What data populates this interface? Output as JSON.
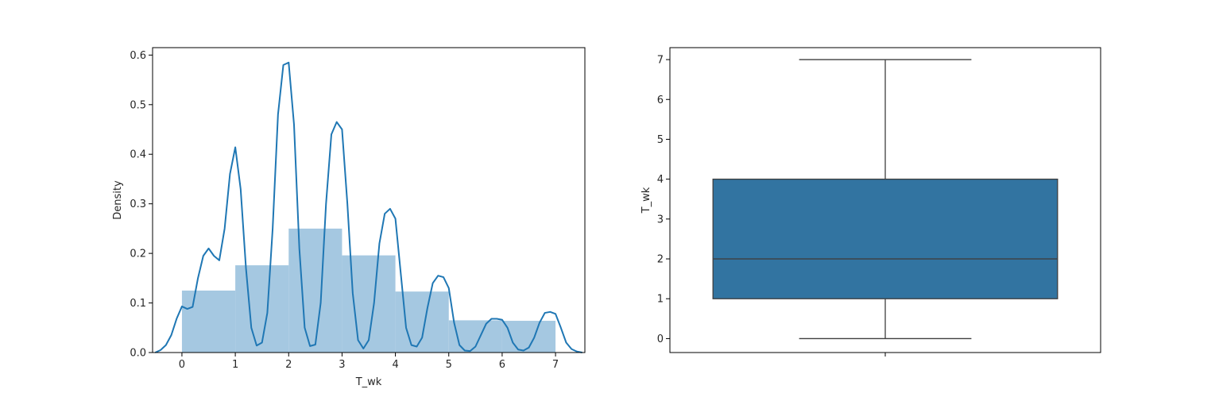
{
  "chart_data": [
    {
      "type": "bar",
      "subtype": "histogram-with-kde",
      "xlabel": "T_wk",
      "ylabel": "Density",
      "xlim": [
        -0.55,
        7.55
      ],
      "ylim": [
        0,
        0.615
      ],
      "xticks": [
        0,
        1,
        2,
        3,
        4,
        5,
        6,
        7
      ],
      "yticks": [
        0.0,
        0.1,
        0.2,
        0.3,
        0.4,
        0.5,
        0.6
      ],
      "ytick_labels": [
        "0.0",
        "0.1",
        "0.2",
        "0.3",
        "0.4",
        "0.5",
        "0.6"
      ],
      "bins": [
        {
          "x0": 0,
          "x1": 1,
          "value": 0.125
        },
        {
          "x0": 1,
          "x1": 2,
          "value": 0.176
        },
        {
          "x0": 2,
          "x1": 3,
          "value": 0.25
        },
        {
          "x0": 3,
          "x1": 4,
          "value": 0.196
        },
        {
          "x0": 4,
          "x1": 5,
          "value": 0.123
        },
        {
          "x0": 5,
          "x1": 6,
          "value": 0.065
        },
        {
          "x0": 6,
          "x1": 7,
          "value": 0.064
        }
      ],
      "kde": {
        "x": [
          -0.5,
          -0.4,
          -0.3,
          -0.2,
          -0.1,
          0.0,
          0.1,
          0.2,
          0.3,
          0.4,
          0.5,
          0.6,
          0.7,
          0.8,
          0.9,
          1.0,
          1.1,
          1.2,
          1.3,
          1.4,
          1.5,
          1.6,
          1.7,
          1.8,
          1.9,
          2.0,
          2.1,
          2.2,
          2.3,
          2.4,
          2.5,
          2.6,
          2.7,
          2.8,
          2.9,
          3.0,
          3.1,
          3.2,
          3.3,
          3.4,
          3.5,
          3.6,
          3.7,
          3.8,
          3.9,
          4.0,
          4.1,
          4.2,
          4.3,
          4.4,
          4.5,
          4.6,
          4.7,
          4.8,
          4.9,
          5.0,
          5.1,
          5.2,
          5.3,
          5.4,
          5.5,
          5.6,
          5.7,
          5.8,
          5.9,
          6.0,
          6.1,
          6.2,
          6.3,
          6.4,
          6.5,
          6.6,
          6.7,
          6.8,
          6.9,
          7.0,
          7.1,
          7.2,
          7.3,
          7.4,
          7.5
        ],
        "y": [
          0.0,
          0.005,
          0.015,
          0.035,
          0.068,
          0.093,
          0.088,
          0.092,
          0.15,
          0.195,
          0.21,
          0.195,
          0.186,
          0.25,
          0.36,
          0.414,
          0.33,
          0.17,
          0.05,
          0.014,
          0.02,
          0.08,
          0.25,
          0.48,
          0.58,
          0.585,
          0.46,
          0.21,
          0.05,
          0.013,
          0.016,
          0.1,
          0.3,
          0.44,
          0.465,
          0.45,
          0.3,
          0.12,
          0.025,
          0.008,
          0.025,
          0.1,
          0.22,
          0.28,
          0.29,
          0.27,
          0.16,
          0.05,
          0.015,
          0.012,
          0.03,
          0.09,
          0.14,
          0.155,
          0.152,
          0.13,
          0.06,
          0.015,
          0.004,
          0.003,
          0.012,
          0.035,
          0.058,
          0.068,
          0.068,
          0.066,
          0.05,
          0.02,
          0.006,
          0.004,
          0.01,
          0.03,
          0.06,
          0.08,
          0.082,
          0.078,
          0.05,
          0.02,
          0.007,
          0.002,
          0.0
        ]
      },
      "colors": {
        "bar": "#a5c8e1",
        "line": "#1f77b4"
      },
      "grid": false
    },
    {
      "type": "box",
      "ylabel": "T_wk",
      "ylim": [
        -0.35,
        7.3
      ],
      "yticks": [
        0,
        1,
        2,
        3,
        4,
        5,
        6,
        7
      ],
      "stats": {
        "whislo": 0,
        "q1": 1,
        "median": 2,
        "q3": 4,
        "whishi": 7
      },
      "colors": {
        "box": "#3274a1",
        "line": "#3f3f3f"
      },
      "grid": false
    }
  ]
}
